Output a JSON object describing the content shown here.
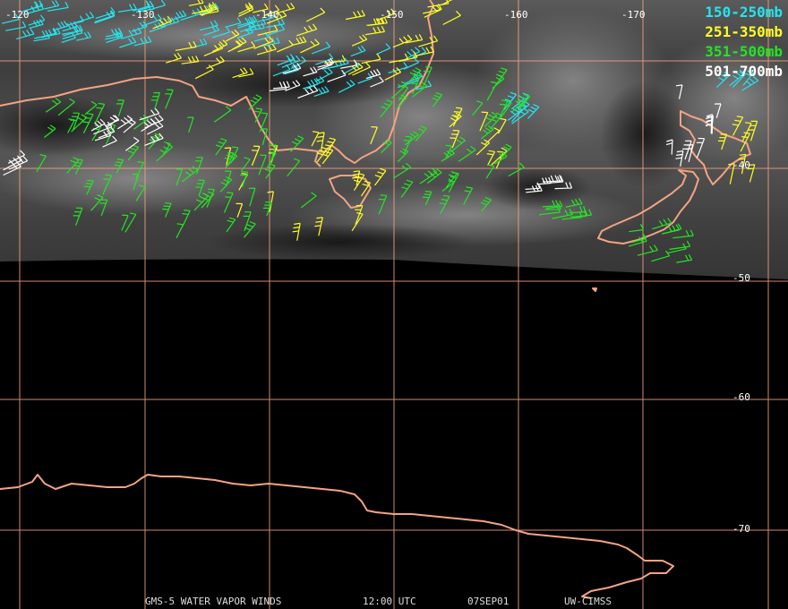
{
  "map": {
    "grid_color": "#f4a383",
    "coast_color": "#f4a383",
    "longitude_labels": [
      "-120",
      "-130",
      "-140",
      "-150",
      "-160",
      "-170"
    ],
    "latitude_labels": [
      "-40",
      "-50",
      "-60",
      "-70"
    ],
    "image_extent_latitude_edge": "approx -47 (southern edge of satellite coverage)",
    "features": [
      "Australia coastline",
      "Tasmania",
      "New Zealand North Island",
      "New Zealand South Island",
      "Antarctica coastline"
    ]
  },
  "legend": [
    {
      "label": "150-250mb",
      "color": "#22e6f0"
    },
    {
      "label": "251-350mb",
      "color": "#ffff22"
    },
    {
      "label": "351-500mb",
      "color": "#22e622"
    },
    {
      "label": "501-700mb",
      "color": "#ffffff"
    }
  ],
  "footer": {
    "product": "GMS-5 WATER VAPOR WINDS",
    "time": "12:00 UTC",
    "date": "07SEP01",
    "source": "UW-CIMSS"
  }
}
